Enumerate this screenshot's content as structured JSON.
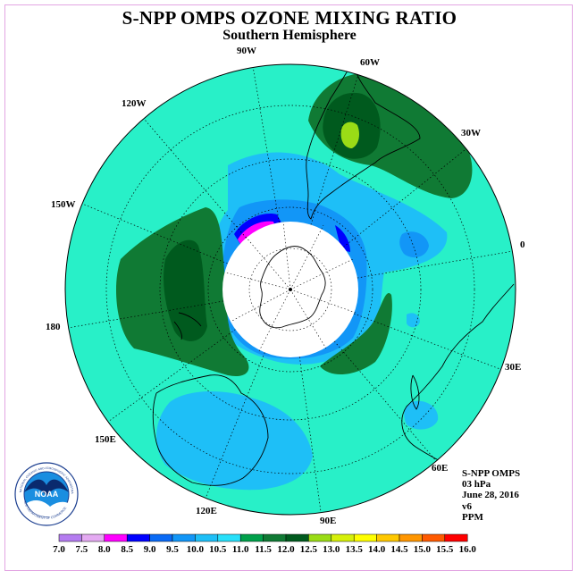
{
  "title": "S-NPP OMPS OZONE MIXING RATIO",
  "subtitle": "Southern Hemisphere",
  "longitude_labels": {
    "w90": "90W",
    "w60": "60W",
    "w30": "30W",
    "e0": "0",
    "e30": "30E",
    "e60": "60E",
    "e90": "90E",
    "e120": "120E",
    "e150": "150E",
    "d180": "180",
    "w150": "150W",
    "w120": "120W"
  },
  "info": {
    "instrument": "S-NPP OMPS",
    "level": "03 hPa",
    "date": "June 28, 2016",
    "version": "v6",
    "units": "PPM"
  },
  "logo": {
    "text": "NOAA",
    "ring_text_top": "NATIONAL OCEANIC AND ATMOSPHERIC ADMINISTRATION",
    "ring_text_bottom": "U.S. DEPARTMENT OF COMMERCE"
  },
  "legend": {
    "ticks": [
      "7.0",
      "7.5",
      "8.0",
      "8.5",
      "9.0",
      "9.5",
      "10.0",
      "10.5",
      "11.0",
      "11.5",
      "12.0",
      "12.5",
      "13.0",
      "13.5",
      "14.0",
      "14.5",
      "15.0",
      "15.5",
      "16.0"
    ],
    "colors": [
      "#b47cf0",
      "#e4aaf2",
      "#ff00ff",
      "#0000ff",
      "#0a6af5",
      "#1296f7",
      "#1ebff7",
      "#28e0fa",
      "#00a04a",
      "#107a34",
      "#005a1e",
      "#9adc16",
      "#d6f00a",
      "#ffff00",
      "#ffc800",
      "#ff9600",
      "#ff5a00",
      "#ff0000",
      "#8a5a3c"
    ]
  },
  "colors": {
    "background": "#28f0c8",
    "dark_green": "#107a34",
    "darker_green": "#005a1e",
    "lime": "#9adc16",
    "light_blue": "#1ebff7",
    "mid_blue": "#1296f7",
    "blue": "#0000ff",
    "magenta": "#ff00ff"
  }
}
